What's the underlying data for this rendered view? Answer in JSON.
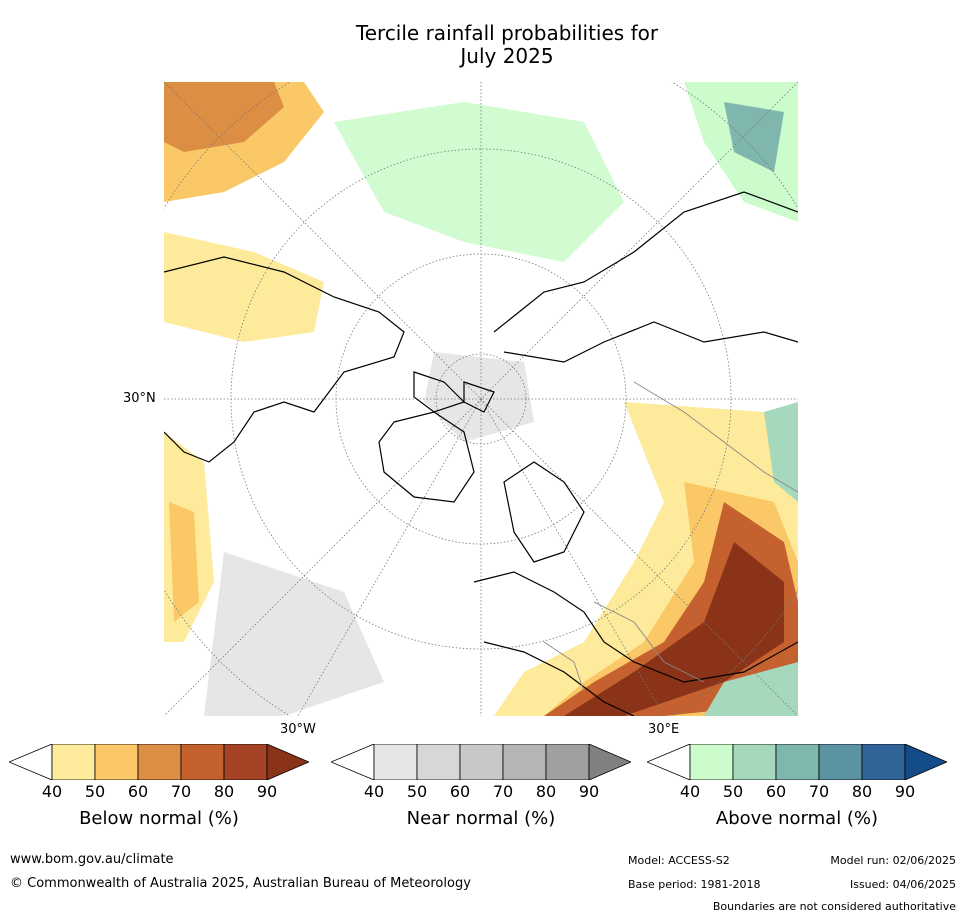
{
  "title_line1": "Tercile rainfall probabilities for",
  "title_line2": "July 2025",
  "lat_labels": {
    "left": "30°N",
    "bottom_left": "30°W",
    "bottom_right": "30°E"
  },
  "colorbars": [
    {
      "label": "Below normal (%)",
      "ticks": [
        "40",
        "50",
        "60",
        "70",
        "80",
        "90"
      ],
      "colors": [
        "#ffffff",
        "#fdeb9b",
        "#fbc867",
        "#dc8e45",
        "#c4612f",
        "#a64327",
        "#8b3318"
      ]
    },
    {
      "label": "Near normal (%)",
      "ticks": [
        "40",
        "50",
        "60",
        "70",
        "80",
        "90"
      ],
      "colors": [
        "#ffffff",
        "#e6e6e6",
        "#d7d7d7",
        "#c8c8c8",
        "#b5b5b5",
        "#a0a0a0",
        "#808080"
      ]
    },
    {
      "label": "Above normal (%)",
      "ticks": [
        "40",
        "50",
        "60",
        "70",
        "80",
        "90"
      ],
      "colors": [
        "#ffffff",
        "#ccfbcc",
        "#a6d8bc",
        "#7fb6ae",
        "#5b93a3",
        "#316599",
        "#144c89"
      ]
    }
  ],
  "footer": {
    "website": "www.bom.gov.au/climate",
    "copyright": "© Commonwealth of Australia 2025, Australian Bureau of Meteorology",
    "model": "Model: ACCESS-S2",
    "base_period": "Base period: 1981-2018",
    "model_run": "Model run: 02/06/2025",
    "issued": "Issued: 04/06/2025",
    "boundaries_note": "Boundaries are not considered authoritative"
  }
}
